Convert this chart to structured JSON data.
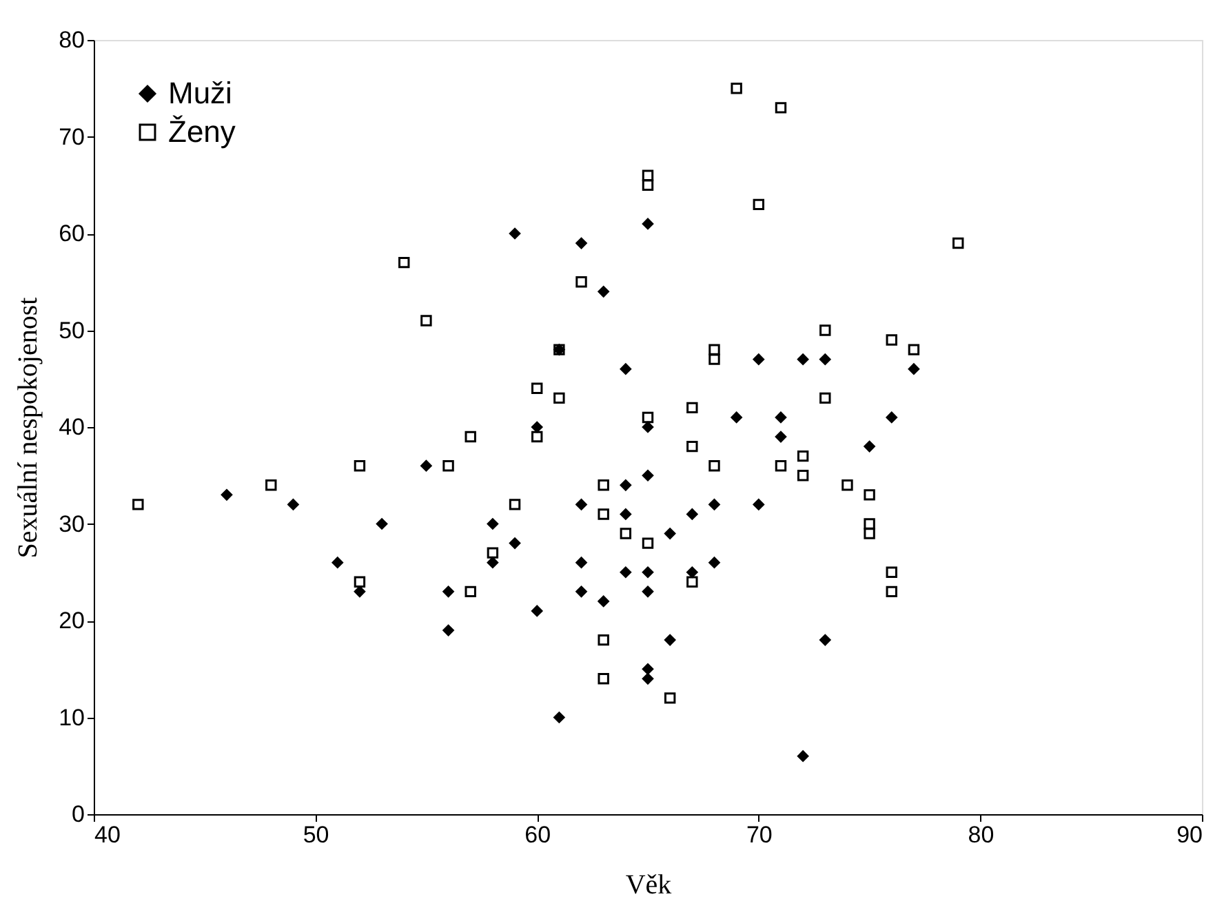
{
  "chart_data": {
    "type": "scatter",
    "xlabel": "Věk",
    "ylabel": "Sexuální nespokojenost",
    "xlim": [
      40,
      90
    ],
    "xticks": [
      40,
      50,
      60,
      70,
      80,
      90
    ],
    "ylim": [
      0,
      80
    ],
    "yticks": [
      0,
      10,
      20,
      30,
      40,
      50,
      60,
      70,
      80
    ],
    "grid": false,
    "legend": "top left",
    "series": [
      {
        "name": "Muži",
        "color": "#000000",
        "marker": "diamond",
        "x": [
          46,
          49,
          51,
          52,
          53,
          55,
          56,
          56,
          58,
          58,
          59,
          59,
          60,
          60,
          61,
          61,
          62,
          62,
          62,
          62,
          63,
          63,
          64,
          64,
          64,
          64,
          65,
          65,
          65,
          65,
          65,
          65,
          65,
          66,
          66,
          67,
          67,
          68,
          68,
          69,
          70,
          70,
          71,
          71,
          72,
          72,
          73,
          73,
          75,
          76,
          77
        ],
        "values": [
          33,
          32,
          26,
          23,
          30,
          36,
          23,
          19,
          30,
          26,
          28,
          60,
          40,
          21,
          48,
          10,
          59,
          32,
          26,
          23,
          54,
          22,
          46,
          34,
          31,
          25,
          61,
          40,
          35,
          25,
          23,
          15,
          14,
          29,
          18,
          31,
          25,
          32,
          26,
          41,
          47,
          32,
          41,
          39,
          47,
          6,
          47,
          18,
          38,
          41,
          46
        ]
      },
      {
        "name": "Ženy",
        "color": "#000000",
        "marker": "square",
        "x": [
          42,
          48,
          52,
          52,
          54,
          55,
          56,
          57,
          57,
          58,
          59,
          60,
          60,
          61,
          61,
          62,
          63,
          63,
          63,
          63,
          64,
          65,
          65,
          65,
          65,
          66,
          67,
          67,
          67,
          68,
          68,
          68,
          69,
          70,
          71,
          71,
          72,
          72,
          73,
          73,
          74,
          75,
          75,
          75,
          76,
          76,
          76,
          77,
          79
        ],
        "values": [
          32,
          34,
          36,
          24,
          57,
          51,
          36,
          39,
          23,
          27,
          32,
          44,
          39,
          48,
          43,
          55,
          34,
          31,
          18,
          14,
          29,
          66,
          65,
          41,
          28,
          12,
          42,
          38,
          24,
          48,
          47,
          36,
          75,
          63,
          73,
          36,
          37,
          35,
          50,
          43,
          34,
          33,
          30,
          29,
          49,
          25,
          23,
          48,
          59
        ]
      }
    ]
  }
}
